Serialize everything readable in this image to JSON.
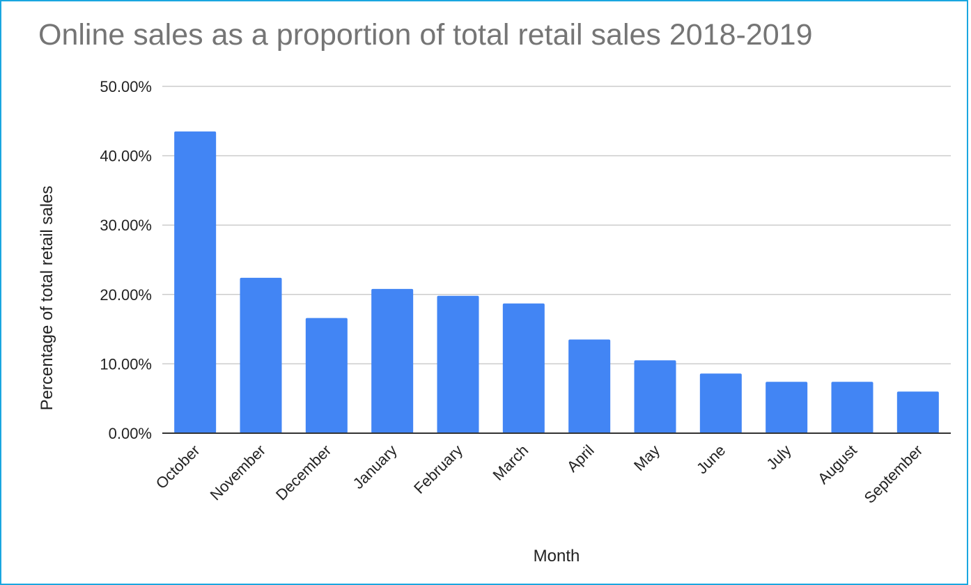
{
  "chart_data": {
    "type": "bar",
    "title": "Online sales as a proportion of total retail sales 2018-2019",
    "xlabel": "Month",
    "ylabel": "Percentage of total retail sales",
    "categories": [
      "October",
      "November",
      "December",
      "January",
      "February",
      "March",
      "April",
      "May",
      "June",
      "July",
      "August",
      "September"
    ],
    "values": [
      43.5,
      22.4,
      16.6,
      20.8,
      19.8,
      18.7,
      13.5,
      10.5,
      8.6,
      7.4,
      7.4,
      6.0
    ],
    "ylim": [
      0,
      50
    ],
    "yticks": [
      "0.00%",
      "10.00%",
      "20.00%",
      "30.00%",
      "40.00%",
      "50.00%"
    ],
    "grid": true,
    "legend": "none",
    "colors": {
      "bar": "#4285f4",
      "grid": "#cccccc",
      "baseline": "#333333",
      "title": "#757575",
      "frame": "#1aa7e0"
    }
  }
}
